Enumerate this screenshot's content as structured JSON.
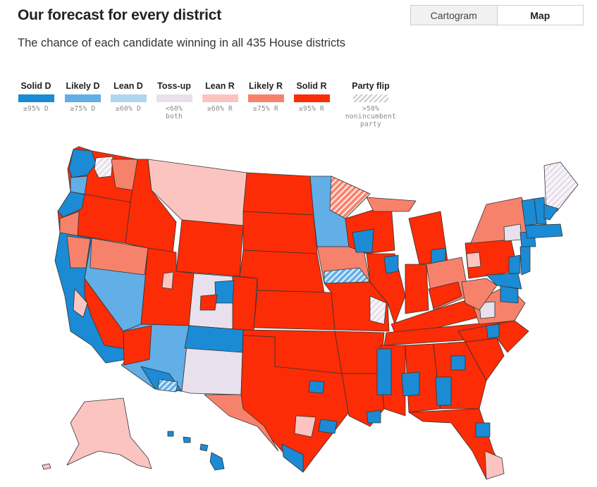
{
  "header": {
    "title": "Our forecast for every district",
    "subtitle": "The chance of each candidate winning in all 435 House districts"
  },
  "view_toggle": {
    "options": [
      "Cartogram",
      "Map"
    ],
    "selected": "Map"
  },
  "legend": [
    {
      "label": "Solid D",
      "note": "≥95% D",
      "color": "#1a8bd4",
      "bold": true
    },
    {
      "label": "Likely D",
      "note": "≥75% D",
      "color": "#62aee6"
    },
    {
      "label": "Lean D",
      "note": "≥60% D",
      "color": "#aed5f2"
    },
    {
      "label": "Toss-up",
      "note": "<60%\nboth",
      "color": "#e8e0ec"
    },
    {
      "label": "Lean R",
      "note": "≥60% R",
      "color": "#fcc4c0"
    },
    {
      "label": "Likely R",
      "note": "≥75% R",
      "color": "#f7826c"
    },
    {
      "label": "Solid R",
      "note": "≥95% R",
      "color": "#fb2c06"
    },
    {
      "label": "Party flip",
      "note": ">50%\nnonincumbent\nparty",
      "color": "hatch"
    }
  ],
  "map": {
    "description_states": [
      {
        "name": "Washington",
        "rating": "mixed"
      },
      {
        "name": "Oregon",
        "rating": "Solid R"
      },
      {
        "name": "California",
        "rating": "Solid D"
      },
      {
        "name": "Nevada",
        "rating": "Likely D"
      },
      {
        "name": "Idaho",
        "rating": "Solid R"
      },
      {
        "name": "Montana",
        "rating": "Lean R"
      },
      {
        "name": "Wyoming",
        "rating": "Solid R"
      },
      {
        "name": "Utah",
        "rating": "Solid R"
      },
      {
        "name": "Arizona",
        "rating": "Likely D"
      },
      {
        "name": "Colorado",
        "rating": "Toss-up"
      },
      {
        "name": "New Mexico",
        "rating": "Toss-up"
      },
      {
        "name": "North Dakota",
        "rating": "Solid R"
      },
      {
        "name": "South Dakota",
        "rating": "Solid R"
      },
      {
        "name": "Nebraska",
        "rating": "Solid R"
      },
      {
        "name": "Kansas",
        "rating": "Solid R"
      },
      {
        "name": "Oklahoma",
        "rating": "Solid R"
      },
      {
        "name": "Texas",
        "rating": "Solid R"
      },
      {
        "name": "Minnesota",
        "rating": "Likely D"
      },
      {
        "name": "Iowa",
        "rating": "Likely R"
      },
      {
        "name": "Missouri",
        "rating": "Solid R"
      },
      {
        "name": "Arkansas",
        "rating": "Solid R"
      },
      {
        "name": "Louisiana",
        "rating": "Solid R"
      },
      {
        "name": "Wisconsin",
        "rating": "Solid R"
      },
      {
        "name": "Illinois",
        "rating": "Solid R"
      },
      {
        "name": "Michigan",
        "rating": "Solid R"
      },
      {
        "name": "Indiana",
        "rating": "Solid R"
      },
      {
        "name": "Ohio",
        "rating": "Likely R"
      },
      {
        "name": "Kentucky",
        "rating": "Solid R"
      },
      {
        "name": "Tennessee",
        "rating": "Solid R"
      },
      {
        "name": "Mississippi",
        "rating": "Solid R"
      },
      {
        "name": "Alabama",
        "rating": "Solid R"
      },
      {
        "name": "Georgia",
        "rating": "Solid R"
      },
      {
        "name": "Florida",
        "rating": "Solid R"
      },
      {
        "name": "South Carolina",
        "rating": "Solid R"
      },
      {
        "name": "North Carolina",
        "rating": "Solid R"
      },
      {
        "name": "Virginia",
        "rating": "Likely R"
      },
      {
        "name": "West Virginia",
        "rating": "Likely R"
      },
      {
        "name": "Pennsylvania",
        "rating": "Solid R"
      },
      {
        "name": "New York",
        "rating": "Likely R"
      },
      {
        "name": "Maine",
        "rating": "Toss-up"
      },
      {
        "name": "Vermont",
        "rating": "Solid D"
      },
      {
        "name": "New Hampshire",
        "rating": "Solid D"
      },
      {
        "name": "Massachusetts",
        "rating": "Solid D"
      },
      {
        "name": "Alaska",
        "rating": "Lean R"
      },
      {
        "name": "Hawaii",
        "rating": "Solid D"
      }
    ]
  }
}
